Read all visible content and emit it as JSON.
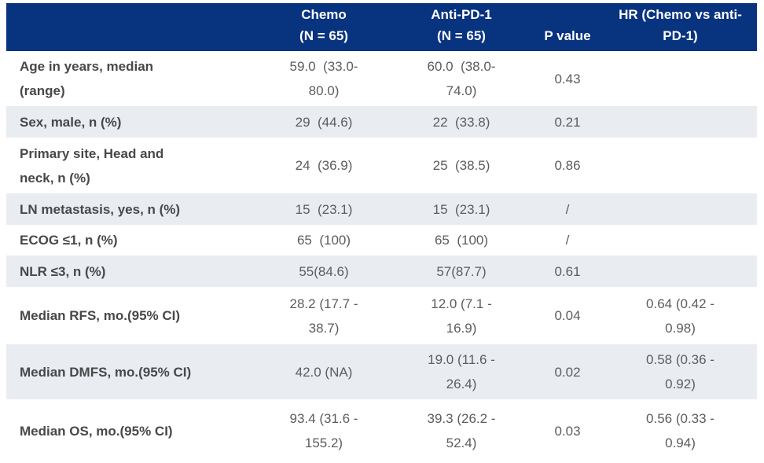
{
  "header": {
    "label": "",
    "chemo": "Chemo\n(N = 65)",
    "anti_pd1": "Anti-PD-1\n(N = 65)",
    "p_value": "P value",
    "hr": "HR (Chemo vs anti-\nPD-1)"
  },
  "rows": [
    {
      "label": "Age in years, median\n(range)",
      "chemo": "59.0  (33.0-\n80.0)",
      "anti_pd1": "60.0  (38.0-\n74.0)",
      "p_value": "0.43",
      "hr": ""
    },
    {
      "label": "Sex, male, n (%)",
      "chemo": "29  (44.6)",
      "anti_pd1": "22  (33.8)",
      "p_value": "0.21",
      "hr": ""
    },
    {
      "label": "Primary site, Head and\nneck, n (%)",
      "chemo": "24  (36.9)",
      "anti_pd1": "25  (38.5)",
      "p_value": "0.86",
      "hr": ""
    },
    {
      "label": "LN metastasis, yes, n (%)",
      "chemo": "15  (23.1)",
      "anti_pd1": "15  (23.1)",
      "p_value": "/",
      "hr": ""
    },
    {
      "label": "ECOG ≤1, n (%)",
      "chemo": "65  (100)",
      "anti_pd1": "65  (100)",
      "p_value": "/",
      "hr": ""
    },
    {
      "label": "NLR ≤3, n (%)",
      "chemo": "55(84.6)",
      "anti_pd1": "57(87.7)",
      "p_value": "0.61",
      "hr": ""
    },
    {
      "label": "Median RFS, mo.(95% CI)",
      "chemo": "28.2 (17.7 -\n38.7)",
      "anti_pd1": "12.0 (7.1 -\n16.9)",
      "p_value": "0.04",
      "hr": "0.64 (0.42 -\n0.98)"
    },
    {
      "label": "Median DMFS, mo.(95% CI)",
      "chemo": "42.0 (NA)",
      "anti_pd1": "19.0 (11.6 -\n26.4)",
      "p_value": "0.02",
      "hr": "0.58 (0.36 -\n0.92)"
    },
    {
      "label": "Median OS, mo.(95% CI)",
      "chemo": "93.4 (31.6 -\n155.2)",
      "anti_pd1": "39.3 (26.2 -\n52.4)",
      "p_value": "0.03",
      "hr": "0.56 (0.33 -\n0.94)"
    }
  ],
  "colors": {
    "header_bg": "#08337f",
    "header_text": "#ffffff",
    "stripe_bg": "#e9edf2",
    "label_text": "#48484a",
    "value_text": "#5c5c5e",
    "page_bg": "#ffffff"
  }
}
